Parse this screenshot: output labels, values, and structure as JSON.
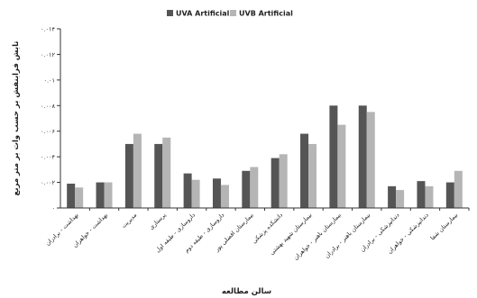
{
  "chart_data": {
    "type": "bar",
    "title": "",
    "xlabel": "سالن مطالعه",
    "ylabel": "تابش فرابنفش بر حسب وات بر متر مربع",
    "ylim": [
      0,
      0.014
    ],
    "yticks": [
      "۰",
      "۰.۰۰۲",
      "۰.۰۰۴",
      "۰.۰۰۶",
      "۰.۰۰۸",
      "۰.۰۱",
      "۰.۰۱۲",
      "۰.۰۱۴"
    ],
    "legend_position": "top",
    "categories": [
      "بهداشت - برادران",
      "بهداشت - خواهران",
      "مدیریت",
      "پرستاری",
      "داروسازی - طبقه اول",
      "داروسازی - طبقه دوم",
      "بیمارستان افضلی پور",
      "دانشکده پزشکی",
      "بیمارستان شهید بهشتی",
      "بیمارستان باهنر - خواهران",
      "بیمارستان باهنر - برادران",
      "دندانپزشکی - برادران",
      "دندانپزشکی - خواهران",
      "بیمارستان شفا"
    ],
    "series": [
      {
        "name": "UVA Artificial",
        "color": "#555555",
        "values": [
          0.0019,
          0.002,
          0.005,
          0.005,
          0.0027,
          0.0023,
          0.0029,
          0.0039,
          0.0058,
          0.008,
          0.008,
          0.0017,
          0.0021,
          0.002
        ]
      },
      {
        "name": "UVB Artificial",
        "color": "#b5b5b5",
        "values": [
          0.0016,
          0.002,
          0.0058,
          0.0055,
          0.0022,
          0.0018,
          0.0032,
          0.0042,
          0.005,
          0.0065,
          0.0075,
          0.0014,
          0.0017,
          0.0029
        ]
      }
    ]
  }
}
